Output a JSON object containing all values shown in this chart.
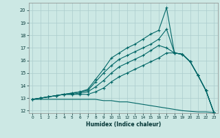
{
  "xlabel": "Humidex (Indice chaleur)",
  "bg_color": "#cce8e4",
  "grid_color": "#aacccc",
  "line_color": "#006666",
  "xlim": [
    -0.5,
    23.5
  ],
  "ylim": [
    11.8,
    20.6
  ],
  "xticks": [
    0,
    1,
    2,
    3,
    4,
    5,
    6,
    7,
    8,
    9,
    10,
    11,
    12,
    13,
    14,
    15,
    16,
    17,
    18,
    19,
    20,
    21,
    22,
    23
  ],
  "yticks": [
    12,
    13,
    14,
    15,
    16,
    17,
    18,
    19,
    20
  ],
  "series": [
    {
      "x": [
        0,
        1,
        2,
        3,
        4,
        5,
        6,
        7,
        8,
        9,
        10,
        11,
        12,
        13,
        14,
        15,
        16,
        17,
        18,
        19,
        20,
        21,
        22,
        23
      ],
      "y": [
        12.9,
        12.9,
        12.9,
        12.9,
        12.9,
        12.9,
        12.9,
        12.9,
        12.9,
        12.8,
        12.8,
        12.7,
        12.7,
        12.6,
        12.5,
        12.4,
        12.3,
        12.2,
        12.1,
        12.0,
        11.95,
        11.9,
        11.9,
        11.85
      ],
      "marker": null
    },
    {
      "x": [
        0,
        1,
        2,
        3,
        4,
        5,
        6,
        7,
        8,
        9,
        10,
        11,
        12,
        13,
        14,
        15,
        16,
        17,
        18,
        19,
        20,
        21,
        22,
        23
      ],
      "y": [
        12.9,
        13.0,
        13.1,
        13.2,
        13.3,
        13.3,
        13.3,
        13.3,
        13.5,
        13.8,
        14.3,
        14.7,
        15.0,
        15.3,
        15.6,
        15.9,
        16.2,
        16.6,
        16.6,
        16.5,
        15.9,
        14.8,
        13.6,
        11.85
      ],
      "marker": "+"
    },
    {
      "x": [
        0,
        1,
        2,
        3,
        4,
        5,
        6,
        7,
        8,
        9,
        10,
        11,
        12,
        13,
        14,
        15,
        16,
        17,
        18,
        19,
        20,
        21,
        22,
        23
      ],
      "y": [
        12.9,
        13.0,
        13.1,
        13.2,
        13.3,
        13.3,
        13.4,
        13.5,
        13.9,
        14.4,
        15.0,
        15.5,
        15.8,
        16.1,
        16.4,
        16.8,
        17.2,
        17.0,
        16.6,
        16.5,
        15.9,
        14.8,
        13.6,
        11.85
      ],
      "marker": "+"
    },
    {
      "x": [
        0,
        1,
        2,
        3,
        4,
        5,
        6,
        7,
        8,
        9,
        10,
        11,
        12,
        13,
        14,
        15,
        16,
        17,
        18,
        19,
        20,
        21,
        22,
        23
      ],
      "y": [
        12.9,
        13.0,
        13.1,
        13.2,
        13.3,
        13.4,
        13.5,
        13.6,
        14.3,
        15.0,
        15.6,
        16.1,
        16.4,
        16.7,
        17.0,
        17.3,
        17.7,
        18.5,
        16.6,
        16.5,
        15.9,
        14.8,
        13.6,
        11.85
      ],
      "marker": "+"
    },
    {
      "x": [
        0,
        1,
        2,
        3,
        4,
        5,
        6,
        7,
        8,
        9,
        10,
        11,
        12,
        13,
        14,
        15,
        16,
        17,
        18,
        19,
        20,
        21,
        22,
        23
      ],
      "y": [
        12.9,
        13.0,
        13.1,
        13.2,
        13.3,
        13.4,
        13.5,
        13.7,
        14.5,
        15.3,
        16.2,
        16.6,
        17.0,
        17.3,
        17.7,
        18.1,
        18.4,
        20.2,
        16.6,
        16.5,
        15.9,
        14.8,
        13.6,
        11.85
      ],
      "marker": "+"
    }
  ]
}
